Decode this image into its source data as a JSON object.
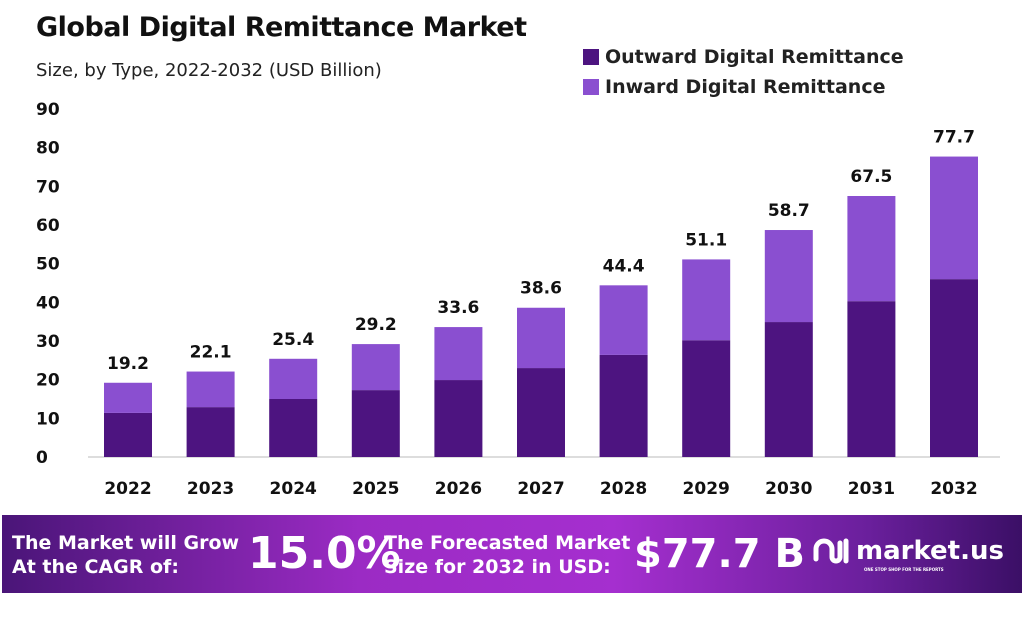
{
  "chart_data": {
    "type": "bar",
    "stacked": true,
    "title": "Global Digital Remittance Market",
    "subtitle": "Size, by Type, 2022-2032 (USD Billion)",
    "categories": [
      "2022",
      "2023",
      "2024",
      "2025",
      "2026",
      "2027",
      "2028",
      "2029",
      "2030",
      "2031",
      "2032"
    ],
    "series": [
      {
        "name": "Outward Digital Remittance",
        "color": "#4d1480",
        "values": [
          11.4,
          12.9,
          15.0,
          17.3,
          19.9,
          23.0,
          26.4,
          30.2,
          34.9,
          40.3,
          46.0
        ]
      },
      {
        "name": "Inward Digital Remittance",
        "color": "#8a4fd0",
        "values": [
          7.8,
          9.2,
          10.4,
          11.9,
          13.7,
          15.6,
          18.0,
          20.9,
          23.8,
          27.2,
          31.7
        ]
      }
    ],
    "totals": [
      "19.2",
      "22.1",
      "25.4",
      "29.2",
      "33.6",
      "38.6",
      "44.4",
      "51.1",
      "58.7",
      "67.5",
      "77.7"
    ],
    "ylim": [
      0,
      90
    ],
    "yticks": [
      "0",
      "10",
      "20",
      "30",
      "40",
      "50",
      "60",
      "70",
      "80",
      "90"
    ],
    "grid": false,
    "legend": "top-right"
  },
  "banner": {
    "cagr_label_1": "The Market will Grow",
    "cagr_label_2": "At the CAGR of:",
    "cagr_value": "15.0%",
    "forecast_label_1": "The Forecasted Market",
    "forecast_label_2": "Size for 2032 in USD:",
    "forecast_value": "$77.7 B",
    "logo_text": "market.us",
    "logo_tagline": "ONE STOP SHOP FOR THE REPORTS"
  }
}
